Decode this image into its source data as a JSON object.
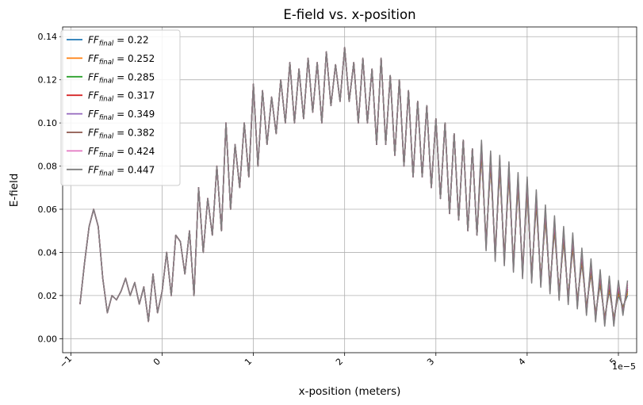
{
  "chart_data": {
    "type": "line",
    "title": "E-field vs. x-position",
    "xlabel": "x-position (meters)",
    "ylabel": "E-field",
    "x_offset_label": "1e−5",
    "xlim": [
      -1.09,
      5.2
    ],
    "ylim": [
      -0.0065,
      0.1445
    ],
    "xticks": [
      -1,
      0,
      1,
      2,
      3,
      4,
      5
    ],
    "xtick_labels": [
      "−1",
      "0",
      "1",
      "2",
      "3",
      "4",
      "5"
    ],
    "yticks": [
      0.0,
      0.02,
      0.04,
      0.06,
      0.08,
      0.1,
      0.12,
      0.14
    ],
    "ytick_labels": [
      "0.00",
      "0.02",
      "0.04",
      "0.06",
      "0.08",
      "0.10",
      "0.12",
      "0.14"
    ],
    "grid": true,
    "legend_position": "top-left",
    "series": [
      {
        "name": "FF_final = 0.22",
        "label_sub": "final",
        "label_value": " = 0.22",
        "color": "#1f77b4"
      },
      {
        "name": "FF_final = 0.252",
        "label_sub": "final",
        "label_value": " = 0.252",
        "color": "#ff7f0e"
      },
      {
        "name": "FF_final = 0.285",
        "label_sub": "final",
        "label_value": " = 0.285",
        "color": "#2ca02c"
      },
      {
        "name": "FF_final = 0.317",
        "label_sub": "final",
        "label_value": " = 0.317",
        "color": "#d62728"
      },
      {
        "name": "FF_final = 0.349",
        "label_sub": "final",
        "label_value": " = 0.349",
        "color": "#9467bd"
      },
      {
        "name": "FF_final = 0.382",
        "label_sub": "final",
        "label_value": " = 0.382",
        "color": "#8c564b"
      },
      {
        "name": "FF_final = 0.424",
        "label_sub": "final",
        "label_value": " = 0.424",
        "color": "#e377c2"
      },
      {
        "name": "FF_final = 0.447",
        "label_sub": "final",
        "label_value": " = 0.447",
        "color": "#7f7f7f"
      }
    ],
    "shared_x": [
      -0.9,
      -0.85,
      -0.8,
      -0.75,
      -0.7,
      -0.65,
      -0.6,
      -0.55,
      -0.5,
      -0.45,
      -0.4,
      -0.35,
      -0.3,
      -0.25,
      -0.2,
      -0.15,
      -0.1,
      -0.05,
      0.0,
      0.05,
      0.1,
      0.15,
      0.2,
      0.25,
      0.3,
      0.35,
      0.4,
      0.45,
      0.5,
      0.55,
      0.6,
      0.65,
      0.7,
      0.75,
      0.8,
      0.85,
      0.9,
      0.95,
      1.0,
      1.05,
      1.1,
      1.15,
      1.2,
      1.25,
      1.3,
      1.35,
      1.4,
      1.45,
      1.5,
      1.55,
      1.6,
      1.65,
      1.7,
      1.75,
      1.8,
      1.85,
      1.9,
      1.95,
      2.0,
      2.05,
      2.1,
      2.15,
      2.2,
      2.25,
      2.3,
      2.35,
      2.4,
      2.45,
      2.5,
      2.55,
      2.6,
      2.65,
      2.7,
      2.75,
      2.8,
      2.85,
      2.9,
      2.95,
      3.0,
      3.05,
      3.1,
      3.15,
      3.2,
      3.25,
      3.3,
      3.35,
      3.4,
      3.45,
      3.5,
      3.55,
      3.6,
      3.65,
      3.7,
      3.75,
      3.8,
      3.85,
      3.9,
      3.95,
      4.0,
      4.05,
      4.1,
      4.15,
      4.2,
      4.25,
      4.3,
      4.35,
      4.4,
      4.45,
      4.5,
      4.55,
      4.6,
      4.65,
      4.7,
      4.75,
      4.8,
      4.85,
      4.9,
      4.95,
      5.0,
      5.05,
      5.1
    ],
    "base_y": [
      0.016,
      0.035,
      0.052,
      0.06,
      0.052,
      0.028,
      0.012,
      0.02,
      0.018,
      0.022,
      0.028,
      0.02,
      0.026,
      0.016,
      0.024,
      0.008,
      0.03,
      0.012,
      0.022,
      0.04,
      0.02,
      0.048,
      0.045,
      0.03,
      0.05,
      0.02,
      0.07,
      0.04,
      0.065,
      0.048,
      0.08,
      0.05,
      0.1,
      0.06,
      0.09,
      0.07,
      0.1,
      0.075,
      0.118,
      0.08,
      0.115,
      0.09,
      0.112,
      0.095,
      0.12,
      0.1,
      0.128,
      0.1,
      0.125,
      0.102,
      0.13,
      0.105,
      0.128,
      0.1,
      0.133,
      0.108,
      0.127,
      0.11,
      0.135,
      0.11,
      0.128,
      0.1,
      0.13,
      0.1,
      0.125,
      0.09,
      0.13,
      0.09,
      0.122,
      0.085,
      0.12,
      0.08,
      0.115,
      0.075,
      0.11,
      0.075,
      0.108,
      0.07,
      0.102,
      0.065,
      0.1,
      0.058,
      0.095,
      0.055,
      0.092,
      0.05,
      0.088,
      0.048,
      0.085,
      0.045,
      0.08,
      0.04,
      0.078,
      0.038,
      0.075,
      0.035,
      0.07,
      0.032,
      0.068,
      0.03,
      0.062,
      0.028,
      0.055,
      0.025,
      0.05,
      0.022,
      0.045,
      0.02,
      0.042,
      0.018,
      0.035,
      0.015,
      0.03,
      0.012,
      0.025,
      0.01,
      0.022,
      0.01,
      0.02,
      0.015,
      0.02
    ],
    "series_offsets": [
      0.0,
      0.001,
      0.002,
      0.003,
      0.004,
      0.005,
      0.006,
      0.007
    ]
  }
}
